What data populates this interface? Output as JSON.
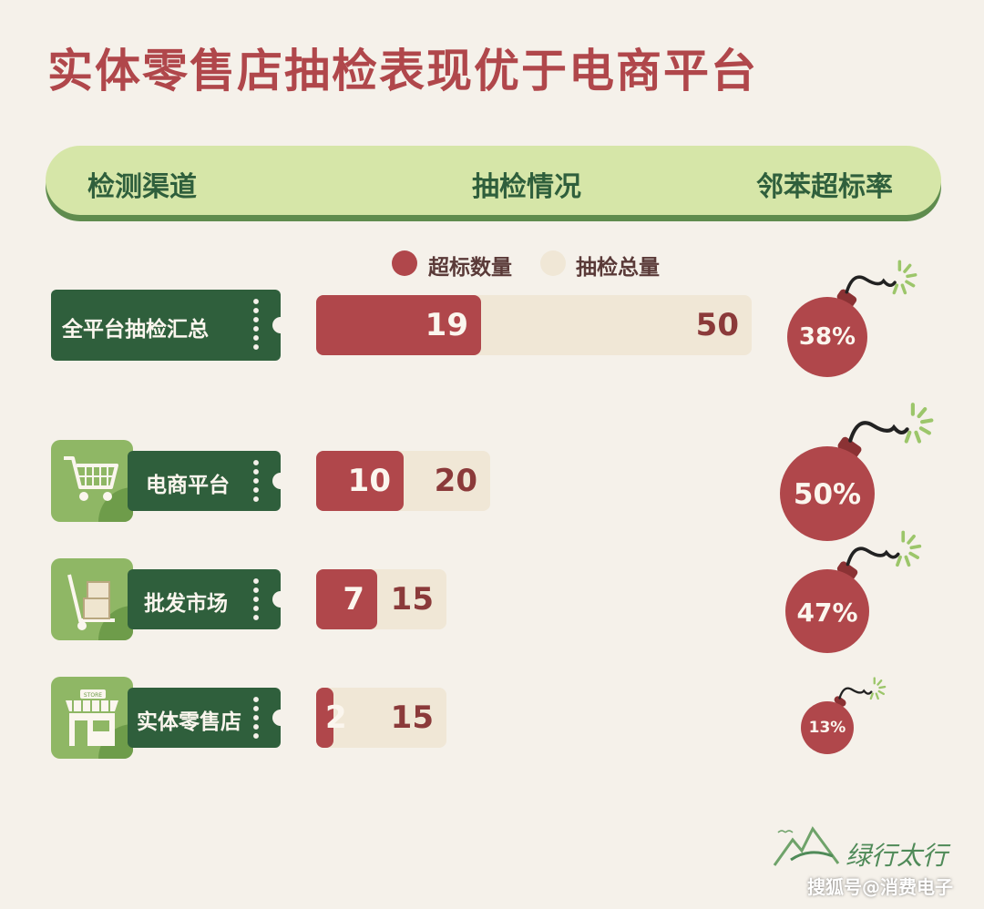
{
  "title": "实体零售店抽检表现优于电商平台",
  "header": {
    "channel": "检测渠道",
    "inspection": "抽检情况",
    "rate": "邻苯超标率"
  },
  "legend": [
    {
      "label": "超标数量",
      "color": "#b0474b"
    },
    {
      "label": "抽检总量",
      "color": "#f0e7d6"
    }
  ],
  "chart_data": {
    "type": "bar",
    "categories": [
      "全平台抽检汇总",
      "电商平台",
      "批发市场",
      "实体零售店"
    ],
    "series": [
      {
        "name": "超标数量",
        "values": [
          19,
          10,
          7,
          2
        ]
      },
      {
        "name": "抽检总量",
        "values": [
          50,
          20,
          15,
          15
        ]
      }
    ],
    "rates": [
      "38%",
      "50%",
      "47%",
      "13%"
    ],
    "icons": [
      "",
      "shopping-cart-icon",
      "hand-truck-icon",
      "store-icon"
    ]
  },
  "logo": {
    "text": "绿行太行"
  },
  "watermark": "搜狐号@消费电子"
}
